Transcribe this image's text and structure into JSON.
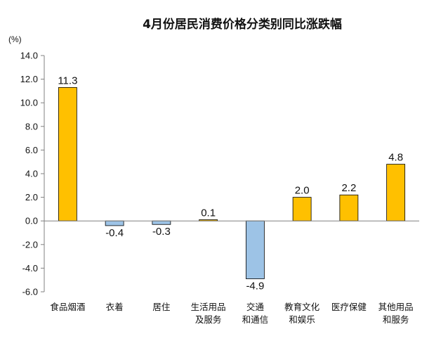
{
  "chart_data": {
    "type": "bar",
    "title": "4月份居民消费价格分类别同比涨跌幅",
    "unit_label": "(%)",
    "categories": [
      [
        "食品烟酒"
      ],
      [
        "衣着"
      ],
      [
        "居住"
      ],
      [
        "生活用品",
        "及服务"
      ],
      [
        "交通",
        "和通信"
      ],
      [
        "教育文化",
        "和娱乐"
      ],
      [
        "医疗保健"
      ],
      [
        "其他用品",
        "和服务"
      ]
    ],
    "values": [
      11.3,
      -0.4,
      -0.3,
      0.1,
      -4.9,
      2.0,
      2.2,
      4.8
    ],
    "value_labels": [
      "11.3",
      "-0.4",
      "-0.3",
      "0.1",
      "-4.9",
      "2.0",
      "2.2",
      "4.8"
    ],
    "ylim": [
      -6.0,
      14.0
    ],
    "yticks": [
      "-6.0",
      "-4.0",
      "-2.0",
      "0.0",
      "2.0",
      "4.0",
      "6.0",
      "8.0",
      "10.0",
      "12.0",
      "14.0"
    ],
    "grid": false,
    "legend": "none",
    "colors": {
      "positive_fill": "#FFC000",
      "positive_stroke": "#000000",
      "negative_fill": "#9DC3E6",
      "negative_stroke": "#000000",
      "axis": "#808080"
    }
  }
}
